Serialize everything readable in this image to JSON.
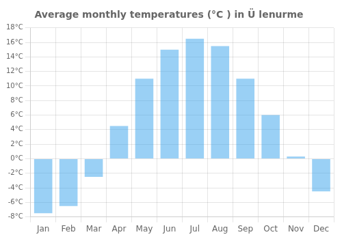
{
  "chart_data": {
    "type": "bar",
    "title": "Average monthly temperatures (°C ) in Ü lenurme",
    "categories": [
      "Jan",
      "Feb",
      "Mar",
      "Apr",
      "May",
      "Jun",
      "Jul",
      "Aug",
      "Sep",
      "Oct",
      "Nov",
      "Dec"
    ],
    "values": [
      -7.5,
      -6.5,
      -2.5,
      4.5,
      11.0,
      15.0,
      16.5,
      15.5,
      11.0,
      6.0,
      0.3,
      -4.5
    ],
    "ylim": [
      -8,
      18
    ],
    "yticks": [
      {
        "value": -8,
        "label": "-8°C"
      },
      {
        "value": -6,
        "label": "-6°C"
      },
      {
        "value": -4,
        "label": "-4°C"
      },
      {
        "value": -2,
        "label": "-2°C"
      },
      {
        "value": 0,
        "label": "0°C"
      },
      {
        "value": 2,
        "label": "2°C"
      },
      {
        "value": 4,
        "label": "4°C"
      },
      {
        "value": 6,
        "label": "6°C"
      },
      {
        "value": 8,
        "label": "8°C"
      },
      {
        "value": 10,
        "label": "10°C"
      },
      {
        "value": 12,
        "label": "12°C"
      },
      {
        "value": 14,
        "label": "14°C"
      },
      {
        "value": 16,
        "label": "16°C"
      },
      {
        "value": 18,
        "label": "18°C"
      }
    ],
    "grid": true
  }
}
